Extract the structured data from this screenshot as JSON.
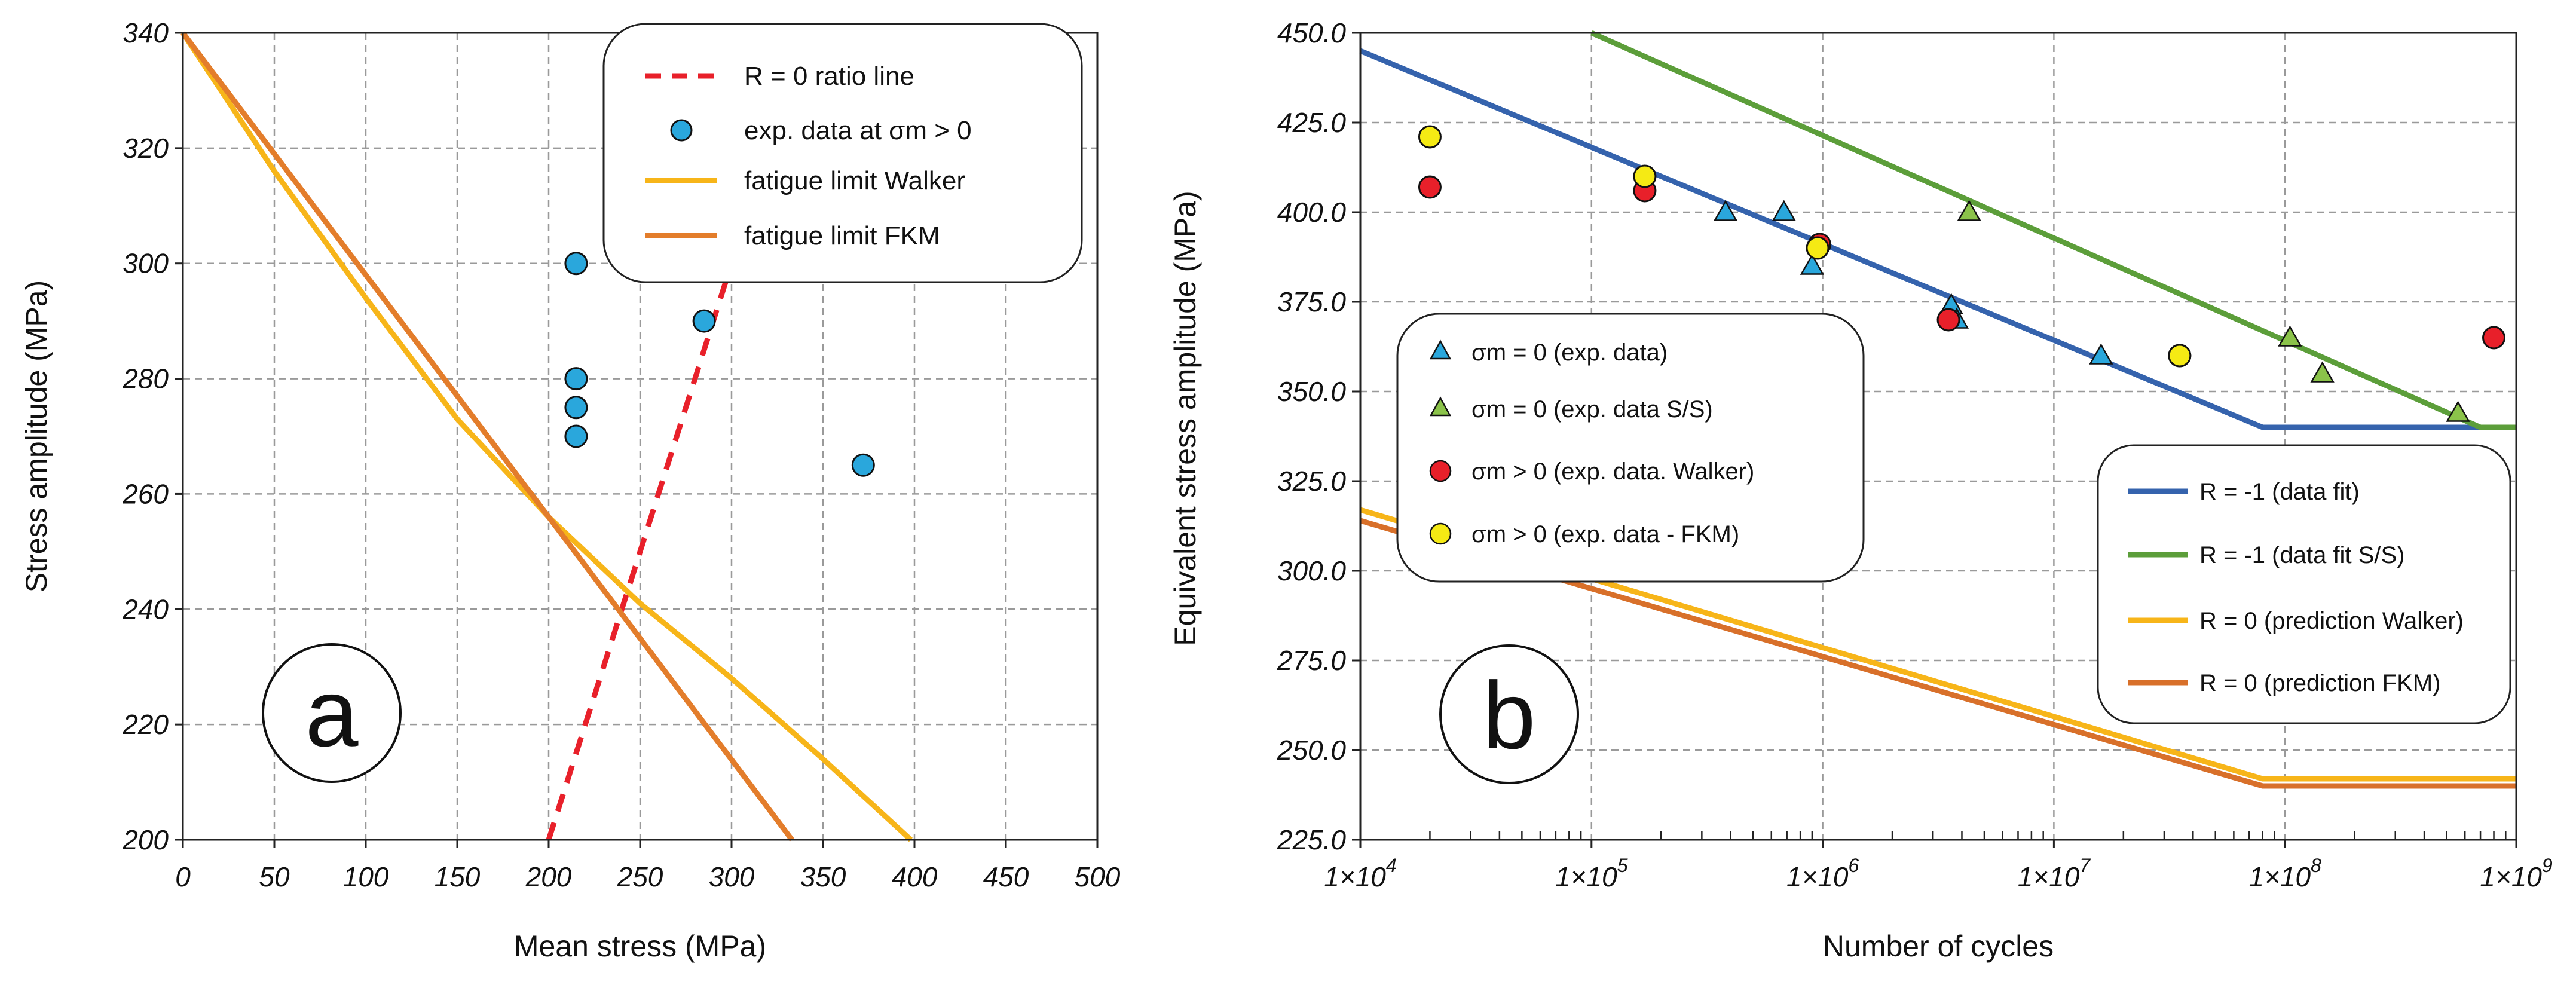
{
  "chart_data": [
    {
      "type": "line",
      "panel_label": "a",
      "xlabel": "Mean stress (MPa)",
      "ylabel": "Stress amplitude (MPa)",
      "xlim": [
        0,
        500
      ],
      "ylim": [
        200,
        340
      ],
      "x_ticks": [
        "0",
        "50",
        "100",
        "150",
        "200",
        "250",
        "300",
        "350",
        "400",
        "450",
        "500"
      ],
      "y_ticks": [
        "200",
        "220",
        "240",
        "260",
        "280",
        "300",
        "320",
        "340"
      ],
      "legend_position": "top-right",
      "series": [
        {
          "name": "R = 0 ratio line",
          "kind": "dashed-line",
          "color": "#e8202a",
          "points": [
            [
              200,
              200
            ],
            [
              300,
              300
            ]
          ]
        },
        {
          "name": "exp. data at σm > 0",
          "kind": "marker",
          "color": "#2aa7dc",
          "points": [
            [
              215,
              300
            ],
            [
              215,
              280
            ],
            [
              215,
              275
            ],
            [
              215,
              270
            ],
            [
              285,
              290
            ],
            [
              372,
              265
            ]
          ]
        },
        {
          "name": "fatigue limit Walker",
          "kind": "line",
          "color": "#f7b519",
          "points": [
            [
              0,
              340
            ],
            [
              50,
              316
            ],
            [
              100,
              294
            ],
            [
              150,
              273
            ],
            [
              200,
              256
            ],
            [
              250,
              241
            ],
            [
              300,
              228
            ],
            [
              350,
              214
            ],
            [
              398,
              200
            ]
          ]
        },
        {
          "name": "fatigue limit FKM",
          "kind": "line",
          "color": "#e37d2b",
          "points": [
            [
              0,
              340
            ],
            [
              200,
              256
            ],
            [
              333,
              200
            ]
          ]
        }
      ]
    },
    {
      "type": "line",
      "panel_label": "b",
      "xlabel": "Number of cycles",
      "ylabel": "Equivalent stress amplitude (MPa)",
      "xscale": "log",
      "xlim": [
        10000,
        1000000000
      ],
      "ylim": [
        225,
        450
      ],
      "x_ticks": [
        {
          "base": "1×10",
          "exp": "4"
        },
        {
          "base": "1×10",
          "exp": "5"
        },
        {
          "base": "1×10",
          "exp": "6"
        },
        {
          "base": "1×10",
          "exp": "7"
        },
        {
          "base": "1×10",
          "exp": "8"
        },
        {
          "base": "1×10",
          "exp": "9"
        }
      ],
      "y_ticks": [
        "225.0",
        "250.0",
        "275.0",
        "300.0",
        "325.0",
        "350.0",
        "375.0",
        "400.0",
        "425.0",
        "450.0"
      ],
      "legend_markers": [
        "σm = 0 (exp. data)",
        "σm = 0 (exp. data S/S)",
        "σm > 0 (exp. data. Walker)",
        "σm > 0 (exp. data  - FKM)"
      ],
      "legend_lines": [
        "R = -1 (data fit)",
        "R = -1 (data fit S/S)",
        "R = 0 (prediction Walker)",
        "R = 0 (prediction FKM)"
      ],
      "series": [
        {
          "name": "R = -1 (data fit)",
          "kind": "line",
          "color": "#3563ad",
          "points": [
            [
              10000,
              445
            ],
            [
              80000000,
              340
            ],
            [
              1000000000,
              340
            ]
          ]
        },
        {
          "name": "R = -1 (data fit S/S)",
          "kind": "line",
          "color": "#5c9e3a",
          "points": [
            [
              100000,
              450
            ],
            [
              700000000,
              340
            ],
            [
              1000000000,
              340
            ]
          ]
        },
        {
          "name": "R = 0 (prediction Walker)",
          "kind": "line",
          "color": "#f7b519",
          "points": [
            [
              10000,
              317
            ],
            [
              80000000,
              242
            ],
            [
              1000000000,
              242
            ]
          ]
        },
        {
          "name": "R = 0 (prediction FKM)",
          "kind": "line",
          "color": "#d8702a",
          "points": [
            [
              10000,
              314
            ],
            [
              80000000,
              240
            ],
            [
              1000000000,
              240
            ]
          ]
        },
        {
          "name": "σm = 0 (exp. data)",
          "kind": "triangle",
          "color": "#2aa7dc",
          "points": [
            [
              380000,
              400
            ],
            [
              680000,
              400
            ],
            [
              900000,
              385
            ],
            [
              3600000,
              374
            ],
            [
              3800000,
              370
            ],
            [
              16000000,
              360
            ]
          ]
        },
        {
          "name": "σm = 0 (exp. data S/S)",
          "kind": "triangle",
          "color": "#8bc34a",
          "points": [
            [
              4300000,
              400
            ],
            [
              105000000,
              365
            ],
            [
              145000000,
              355
            ],
            [
              560000000,
              344
            ]
          ]
        },
        {
          "name": "σm > 0 (exp. data. Walker)",
          "kind": "circle",
          "color": "#e8202a",
          "points": [
            [
              20000,
              407
            ],
            [
              170000,
              406
            ],
            [
              970000,
              391
            ],
            [
              3500000,
              370
            ],
            [
              35000000,
              360
            ],
            [
              800000000,
              365
            ]
          ]
        },
        {
          "name": "σm > 0 (exp. data  - FKM)",
          "kind": "circle",
          "color": "#f5ea14",
          "points": [
            [
              20000,
              421
            ],
            [
              170000,
              410
            ],
            [
              950000,
              390
            ],
            [
              35000000,
              360
            ]
          ]
        }
      ]
    }
  ]
}
